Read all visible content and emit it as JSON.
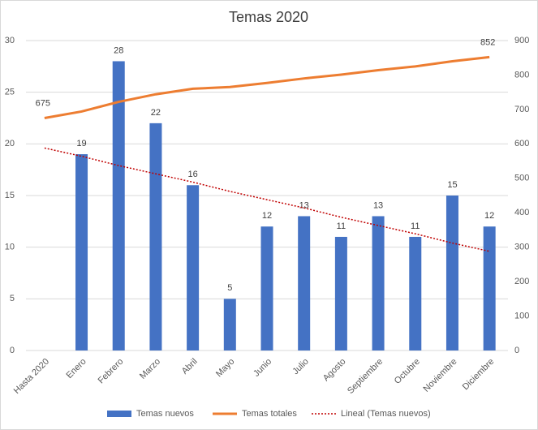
{
  "chart_data": {
    "type": "bar-line",
    "title": "Temas 2020",
    "categories": [
      "Hasta 2020",
      "Enero",
      "Febrero",
      "Marzo",
      "Abril",
      "Mayo",
      "Junio",
      "Julio",
      "Agosto",
      "Septiembre",
      "Octubre",
      "Noviembre",
      "Diciembre"
    ],
    "series": [
      {
        "name": "Temas nuevos",
        "type": "bar",
        "color": "#4472c4",
        "values": [
          null,
          19,
          28,
          22,
          16,
          5,
          12,
          13,
          11,
          13,
          11,
          15,
          12
        ]
      },
      {
        "name": "Temas totales",
        "type": "line",
        "axis": "y2",
        "color": "#ed7d31",
        "values": [
          675,
          694,
          722,
          744,
          760,
          765,
          777,
          790,
          801,
          814,
          825,
          840,
          852
        ],
        "value_labels": [
          "675",
          null,
          null,
          null,
          null,
          null,
          null,
          null,
          null,
          null,
          null,
          null,
          "852"
        ]
      },
      {
        "name": "Lineal (Temas nuevos)",
        "type": "trend",
        "color": "#c00000",
        "values": [
          19.6,
          18.8,
          17.9,
          17.1,
          16.3,
          15.4,
          14.6,
          13.8,
          12.9,
          12.1,
          11.3,
          10.4,
          9.6
        ]
      }
    ],
    "ylim": [
      0,
      30
    ],
    "yticks": [
      0,
      5,
      10,
      15,
      20,
      25,
      30
    ],
    "y2lim": [
      0,
      900
    ],
    "y2ticks": [
      0,
      100,
      200,
      300,
      400,
      500,
      600,
      700,
      800,
      900
    ],
    "grid": true,
    "legend": "bottom"
  }
}
